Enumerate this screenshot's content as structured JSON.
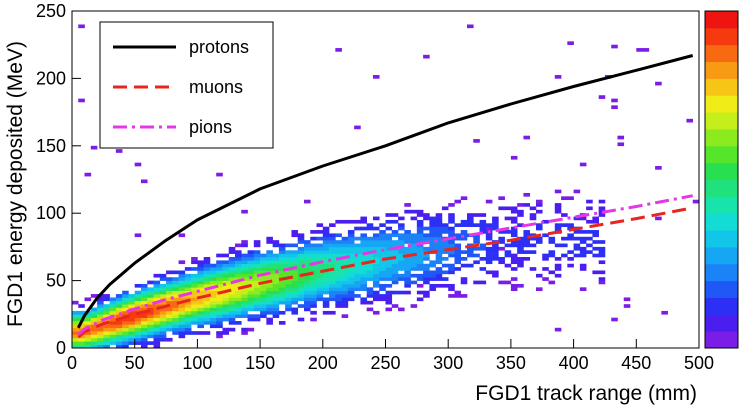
{
  "chart_data": {
    "type": "heatmap",
    "title": "",
    "xlabel": "FGD1 track range (mm)",
    "ylabel": "FGD1 energy deposited (MeV)",
    "xlim": [
      0,
      500
    ],
    "ylim": [
      0,
      250
    ],
    "x_ticks": [
      "0",
      "50",
      "100",
      "150",
      "200",
      "250",
      "300",
      "350",
      "400",
      "450",
      "500"
    ],
    "y_ticks": [
      "0",
      "50",
      "100",
      "150",
      "200",
      "250"
    ],
    "grid": false,
    "legend_position": "top-left",
    "colorbar": {
      "position": "right",
      "colors": [
        "#7a1de6",
        "#4b1ef0",
        "#2d2ff5",
        "#1f58f7",
        "#1c82f7",
        "#16a7f4",
        "#12c6ea",
        "#12dcd3",
        "#18e3aa",
        "#1fe27c",
        "#28e04f",
        "#55e52a",
        "#8ceb1f",
        "#c5ef1a",
        "#f0ec18",
        "#f7c516",
        "#f89a14",
        "#f86a12",
        "#f53a10",
        "#ee1410"
      ]
    },
    "series": [
      {
        "name": "protons",
        "style": "solid",
        "color": "#000000",
        "x": [
          5,
          10,
          20,
          30,
          50,
          75,
          100,
          150,
          200,
          250,
          300,
          350,
          400,
          450,
          495
        ],
        "y": [
          15,
          24,
          37,
          47,
          63,
          80,
          95,
          118,
          135,
          150,
          167,
          181,
          194,
          206,
          217
        ]
      },
      {
        "name": "muons",
        "style": "dashed",
        "color": "#e8251e",
        "x": [
          5,
          10,
          25,
          50,
          75,
          100,
          150,
          200,
          250,
          300,
          350,
          400,
          450,
          495
        ],
        "y": [
          8,
          12,
          18,
          25,
          31,
          37,
          48,
          57,
          66,
          73,
          80,
          88,
          96,
          104
        ]
      },
      {
        "name": "pions",
        "style": "dash-dot",
        "color": "#e637e6",
        "x": [
          5,
          10,
          25,
          50,
          75,
          100,
          150,
          200,
          250,
          300,
          350,
          400,
          450,
          495
        ],
        "y": [
          10,
          14,
          21,
          29,
          36,
          42,
          54,
          64,
          73,
          81,
          89,
          97,
          105,
          113
        ]
      }
    ],
    "density_band": {
      "description_points_x": [
        10,
        50,
        100,
        150,
        200,
        250,
        300,
        350
      ],
      "ridge_y": [
        12,
        24,
        37,
        48,
        58,
        66,
        73,
        80
      ],
      "peak_intensity": [
        0.9,
        1.0,
        0.85,
        0.7,
        0.5,
        0.35,
        0.22,
        0.12
      ]
    }
  }
}
